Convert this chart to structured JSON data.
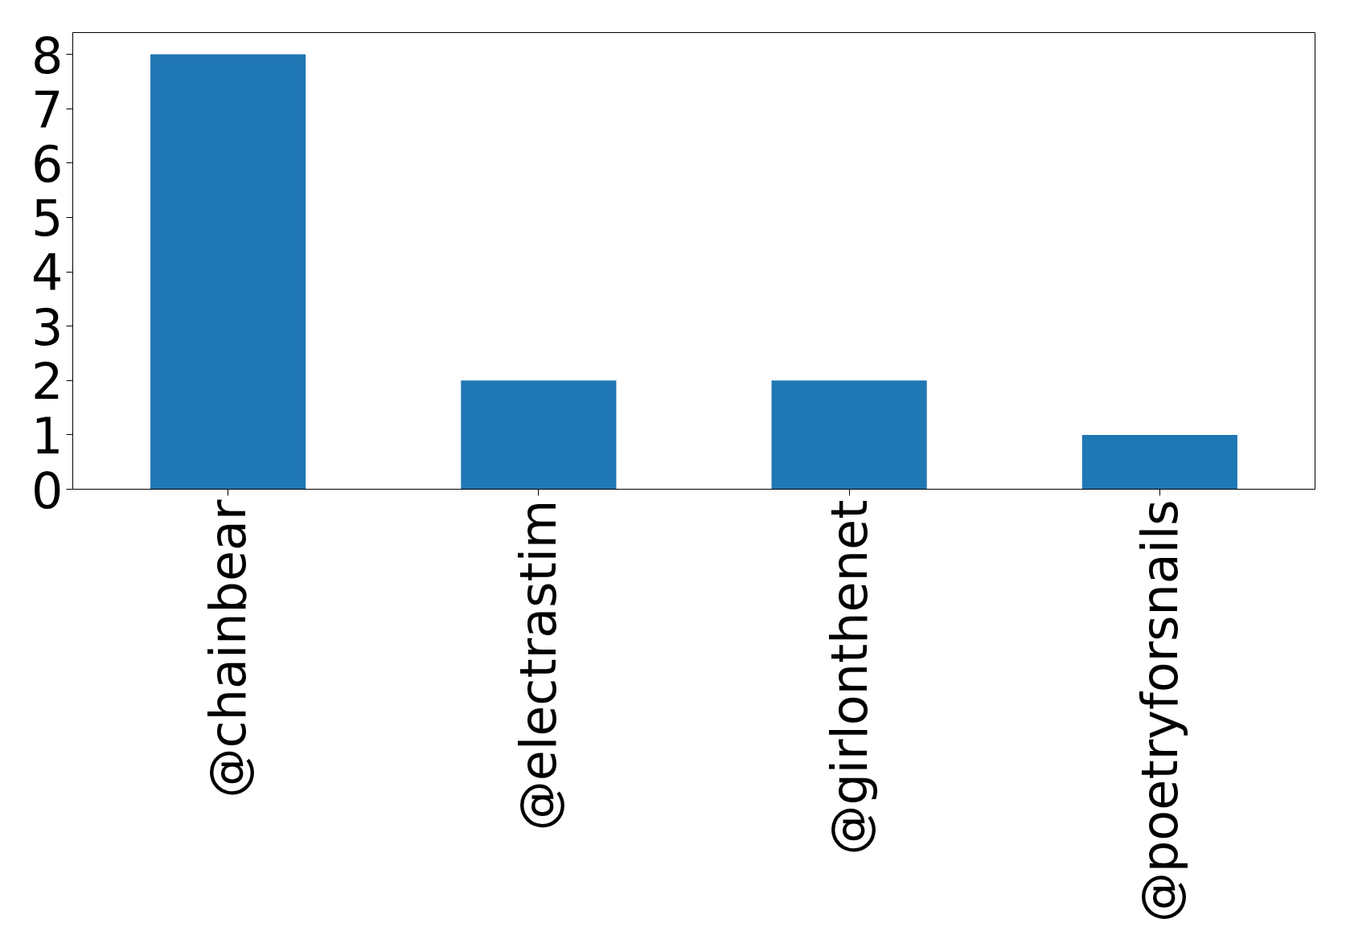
{
  "chart_data": {
    "type": "bar",
    "categories": [
      "@chainbear",
      "@electrastim",
      "@girlonthenet",
      "@poetryforsnails"
    ],
    "values": [
      8,
      2,
      2,
      1
    ],
    "color": "#1f77b4",
    "ylim": [
      0,
      8.4
    ],
    "yticks": [
      0,
      1,
      2,
      3,
      4,
      5,
      6,
      7,
      8
    ],
    "grid": false
  }
}
